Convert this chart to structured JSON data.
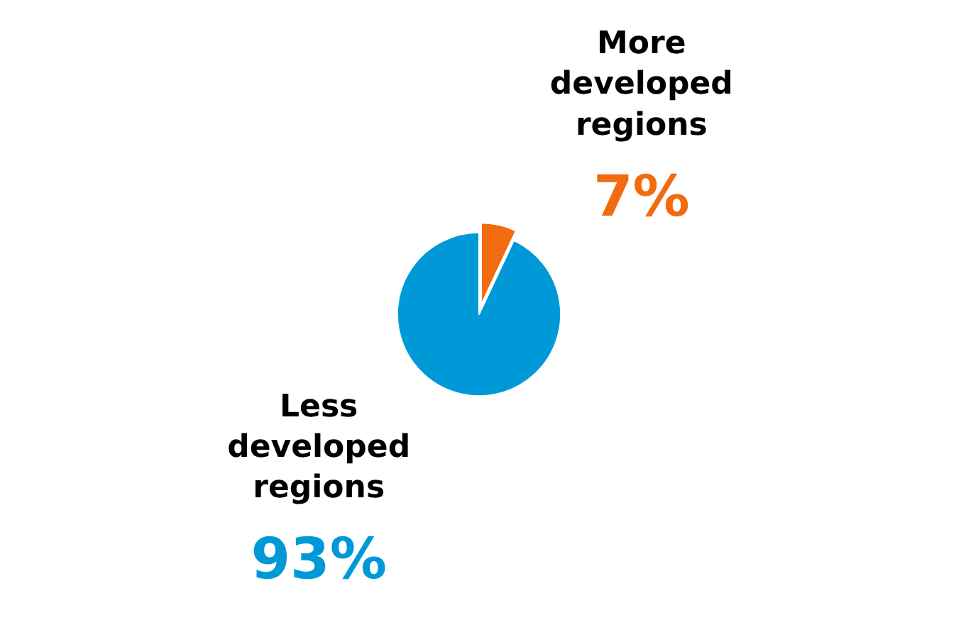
{
  "chart_data": {
    "type": "pie",
    "categories": [
      "More developed regions",
      "Less developed regions"
    ],
    "values": [
      7,
      93
    ],
    "colors": [
      "#f26b0f",
      "#0099d8"
    ],
    "value_labels": [
      "7%",
      "93%"
    ],
    "legend": false
  }
}
